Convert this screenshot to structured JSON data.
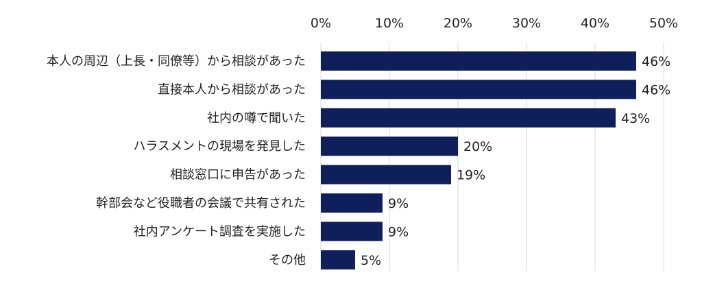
{
  "chart_data": {
    "type": "bar",
    "orientation": "horizontal",
    "title": "",
    "xlabel": "",
    "ylabel": "",
    "xlim": [
      0,
      50
    ],
    "axis_position": "top",
    "ticks": [
      "0%",
      "10%",
      "20%",
      "30%",
      "40%",
      "50%"
    ],
    "tick_values": [
      0,
      10,
      20,
      30,
      40,
      50
    ],
    "grid": true,
    "legend": "none",
    "bar_color": "#0f1f5c",
    "categories": [
      "本人の周辺（上長・同僚等）から相談があった",
      "直接本人から相談があった",
      "社内の噂で聞いた",
      "ハラスメントの現場を発見した",
      "相談窓口に申告があった",
      "幹部会など役職者の会議で共有された",
      "社内アンケート調査を実施した",
      "その他"
    ],
    "values": [
      46,
      46,
      43,
      20,
      19,
      9,
      9,
      5
    ],
    "value_labels": [
      "46%",
      "46%",
      "43%",
      "20%",
      "19%",
      "9%",
      "9%",
      "5%"
    ]
  }
}
